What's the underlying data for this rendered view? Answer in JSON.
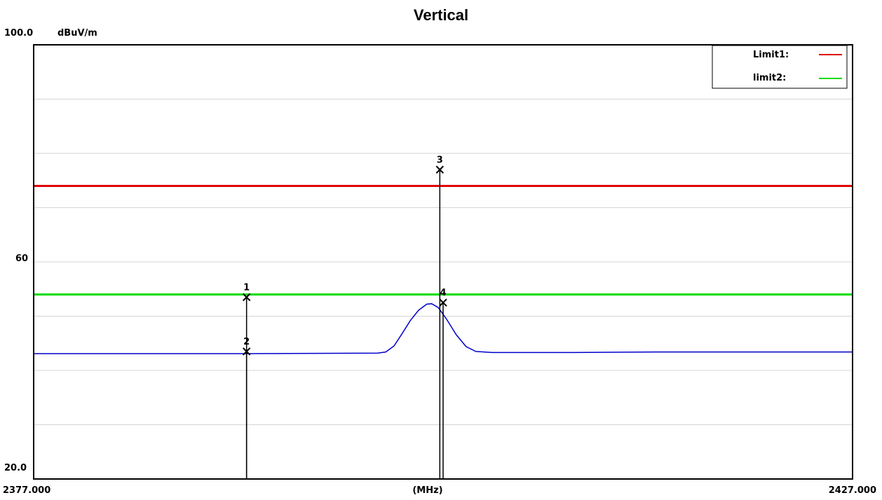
{
  "chart_data": {
    "type": "line",
    "title": "Vertical",
    "y_unit": "dBuV/m",
    "x_unit": "(MHz)",
    "ylim": [
      20,
      100
    ],
    "xlim": [
      2377.0,
      2427.0
    ],
    "y_tick_labels": {
      "top": "100.0",
      "mid": "60",
      "bottom": "20.0"
    },
    "x_tick_labels": {
      "left": "2377.000",
      "right": "2427.000"
    },
    "grid": true,
    "legend": {
      "placement": "top-right",
      "entries": [
        {
          "label": "Limit1:",
          "color": "#e00000"
        },
        {
          "label": "limit2:",
          "color": "#00dd00"
        }
      ]
    },
    "limit_lines": [
      {
        "name": "Limit1",
        "y": 74,
        "color": "#e00000"
      },
      {
        "name": "limit2",
        "y": 54,
        "color": "#00dd00"
      }
    ],
    "trace": {
      "color": "#0000cc",
      "points": [
        [
          2377.0,
          43.1
        ],
        [
          2390.0,
          43.1
        ],
        [
          2398.0,
          43.2
        ],
        [
          2398.5,
          43.4
        ],
        [
          2399.0,
          44.5
        ],
        [
          2399.5,
          46.8
        ],
        [
          2400.0,
          49.2
        ],
        [
          2400.5,
          51.1
        ],
        [
          2401.0,
          52.2
        ],
        [
          2401.3,
          52.3
        ],
        [
          2401.7,
          51.6
        ],
        [
          2402.2,
          49.5
        ],
        [
          2402.8,
          46.6
        ],
        [
          2403.4,
          44.4
        ],
        [
          2404.0,
          43.5
        ],
        [
          2405.0,
          43.3
        ],
        [
          2410.0,
          43.3
        ],
        [
          2415.0,
          43.4
        ],
        [
          2420.0,
          43.4
        ],
        [
          2427.0,
          43.4
        ]
      ]
    },
    "markers": [
      {
        "id": "1",
        "x": 2390.0,
        "y": 53.5
      },
      {
        "id": "2",
        "x": 2390.0,
        "y": 43.5
      },
      {
        "id": "3",
        "x": 2401.8,
        "y": 77.0
      },
      {
        "id": "4",
        "x": 2402.0,
        "y": 52.5
      }
    ]
  },
  "colors": {
    "grid": "#d4d4d4",
    "frame": "#000000"
  }
}
